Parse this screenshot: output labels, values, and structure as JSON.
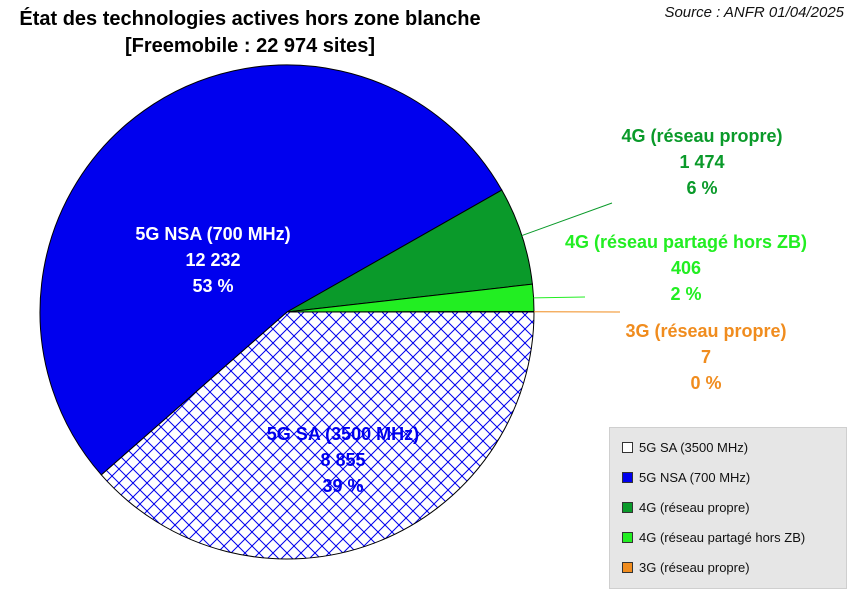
{
  "title": {
    "line1": "État des technologies actives hors zone blanche",
    "line2": "[Freemobile : 22 974 sites]"
  },
  "source": "Source : ANFR 01/04/2025",
  "chart_data": {
    "type": "pie",
    "total": 22974,
    "slices": [
      {
        "label": "5G SA (3500 MHz)",
        "value": 8855,
        "pct": "39 %",
        "value_text": "8 855",
        "color": "#ffffff",
        "pattern": "crosshatch",
        "pattern_color": "#0000ee",
        "text_color": "#0000ee",
        "label_inside": true
      },
      {
        "label": "5G NSA (700 MHz)",
        "value": 12232,
        "pct": "53 %",
        "value_text": "12 232",
        "color": "#0000ee",
        "text_color": "#ffffff",
        "label_inside": true
      },
      {
        "label": "4G (réseau propre)",
        "value": 1474,
        "pct": "6 %",
        "value_text": "1 474",
        "color": "#0a9a2a",
        "text_color": "#0a9a2a",
        "label_inside": false
      },
      {
        "label": "4G (réseau partagé hors ZB)",
        "value": 406,
        "pct": "2 %",
        "value_text": "406",
        "color": "#22ee22",
        "text_color": "#22ee22",
        "label_inside": false
      },
      {
        "label": "3G (réseau propre)",
        "value": 7,
        "pct": "0 %",
        "value_text": "7",
        "color": "#f08c1e",
        "text_color": "#f08c1e",
        "label_inside": false
      }
    ],
    "legend": {
      "placement": "bottom-right",
      "items": [
        "5G SA (3500 MHz)",
        "5G NSA (700 MHz)",
        "4G (réseau propre)",
        "4G (réseau partagé hors ZB)",
        "3G (réseau propre)"
      ],
      "colors": [
        "#ffffff",
        "#0000ee",
        "#0a9a2a",
        "#22ee22",
        "#f08c1e"
      ]
    }
  }
}
